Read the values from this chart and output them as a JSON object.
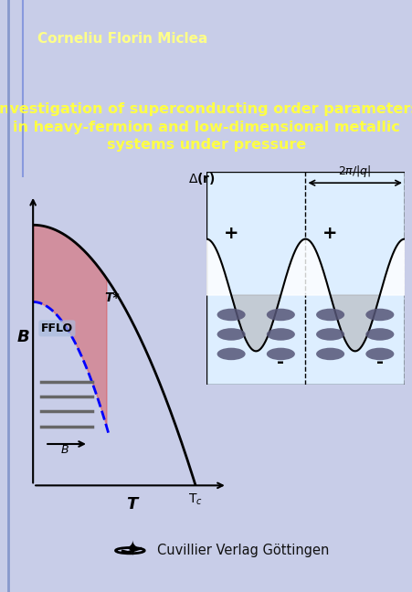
{
  "author": "Corneliu Florin Miclea",
  "author_color": "#FFFF88",
  "title_line1": "Investigation of superconducting order parameters",
  "title_line2": "in heavy-fermion and low-dimensional metallic",
  "title_line3": "systems under pressure",
  "title_color": "#FFFF44",
  "header_bg": "#1010CC",
  "title_bg": "#1515CC",
  "body_bg": "#C8CDE8",
  "sidebar_color": "#7888CC",
  "publisher": "Cuvillier Verlag Göttingen",
  "publisher_color": "#111111"
}
